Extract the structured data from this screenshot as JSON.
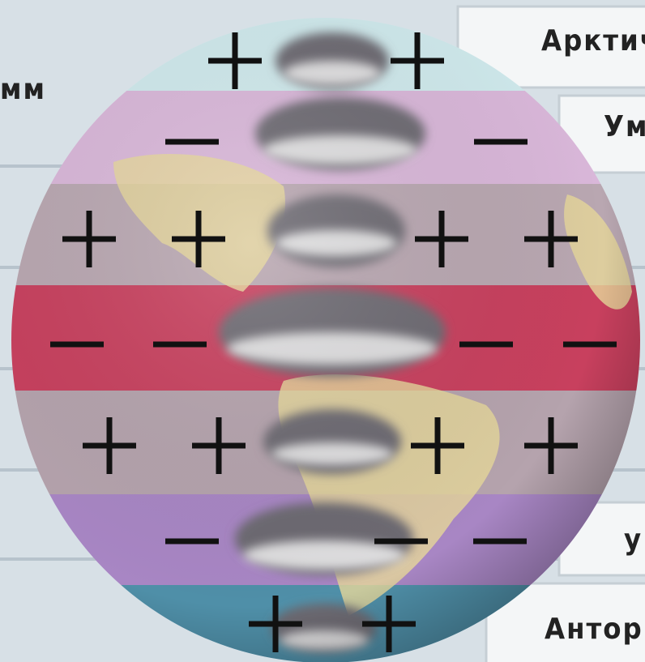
{
  "left_label": "мм",
  "right_labels": [
    "Арктич",
    "Ум",
    "у",
    "Анторк"
  ]
}
